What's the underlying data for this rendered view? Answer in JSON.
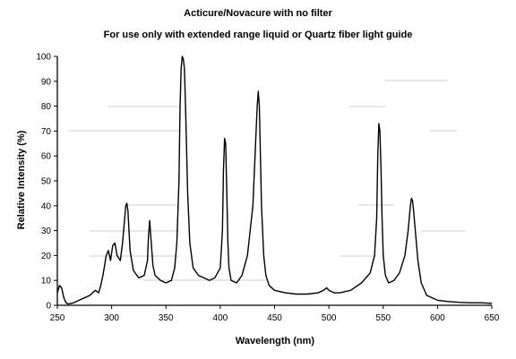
{
  "chart_data": {
    "type": "line",
    "title": "Acticure/Novacure with no filter",
    "subtitle": "For use only with extended range liquid or Quartz fiber light guide",
    "xlabel": "Wavelength (nm)",
    "ylabel": "Relative Intensity (%)",
    "xlim": [
      250,
      650
    ],
    "ylim": [
      0,
      100
    ],
    "x_ticks": [
      250,
      300,
      350,
      400,
      450,
      500,
      550,
      600,
      650
    ],
    "y_ticks": [
      0,
      10,
      20,
      30,
      40,
      50,
      60,
      70,
      80,
      90,
      100
    ],
    "grid": false,
    "series": [
      {
        "x": [
          250,
          252,
          254,
          256,
          258,
          260,
          265,
          270,
          275,
          280,
          285,
          288,
          290,
          292,
          295,
          297,
          299,
          301,
          303,
          305,
          308,
          310,
          312,
          313,
          314,
          315,
          317,
          320,
          325,
          330,
          333,
          334,
          335,
          336,
          338,
          340,
          345,
          350,
          355,
          358,
          360,
          362,
          363,
          364,
          365,
          366,
          367,
          368,
          370,
          372,
          375,
          380,
          385,
          390,
          395,
          400,
          402,
          403,
          404,
          405,
          406,
          407,
          408,
          410,
          415,
          420,
          425,
          430,
          432,
          434,
          435,
          436,
          437,
          438,
          440,
          442,
          445,
          450,
          460,
          470,
          480,
          490,
          495,
          498,
          500,
          505,
          510,
          520,
          530,
          538,
          542,
          544,
          545,
          546,
          547,
          548,
          549,
          550,
          552,
          555,
          560,
          565,
          570,
          573,
          575,
          576,
          577,
          578,
          580,
          582,
          585,
          590,
          600,
          610,
          620,
          630,
          640,
          650
        ],
        "y": [
          5,
          8,
          7,
          3,
          1,
          0.5,
          1,
          2,
          3,
          4,
          6,
          5,
          8,
          12,
          20,
          22,
          18,
          24,
          25,
          20,
          18,
          25,
          35,
          40,
          41,
          38,
          22,
          14,
          11,
          12,
          18,
          28,
          34,
          28,
          16,
          12,
          10,
          9,
          10,
          15,
          25,
          50,
          80,
          95,
          100,
          99,
          95,
          80,
          45,
          25,
          15,
          12,
          11,
          10,
          11,
          15,
          30,
          55,
          67,
          65,
          45,
          25,
          15,
          10,
          9,
          12,
          20,
          40,
          60,
          80,
          86,
          80,
          60,
          40,
          20,
          12,
          8,
          6,
          5,
          4.5,
          4.5,
          5,
          6,
          7,
          6,
          5,
          5,
          6,
          9,
          13,
          20,
          35,
          60,
          73,
          70,
          55,
          35,
          20,
          12,
          9,
          10,
          13,
          20,
          30,
          40,
          43,
          42,
          38,
          28,
          18,
          9,
          4,
          2,
          1.5,
          1.2,
          1,
          1,
          0.8
        ]
      }
    ]
  }
}
